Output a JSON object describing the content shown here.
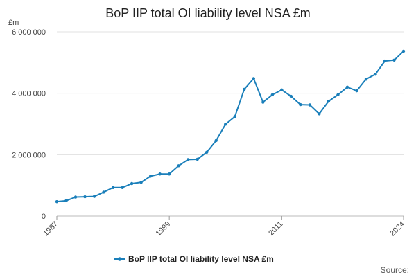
{
  "chart_data": {
    "type": "line",
    "title": "BoP IIP total OI liability level NSA £m",
    "ylabel": "£m",
    "xlabel": "",
    "ylim": [
      0,
      6000000
    ],
    "xlim": [
      1987,
      2024
    ],
    "y_ticks": [
      {
        "value": 0,
        "label": "0"
      },
      {
        "value": 2000000,
        "label": "2 000 000"
      },
      {
        "value": 4000000,
        "label": "4 000 000"
      },
      {
        "value": 6000000,
        "label": "6 000 000"
      }
    ],
    "x_ticks": [
      {
        "value": 1987,
        "label": "1987"
      },
      {
        "value": 1999,
        "label": "1999"
      },
      {
        "value": 2011,
        "label": "2011"
      },
      {
        "value": 2024,
        "label": "2024"
      }
    ],
    "grid": true,
    "legend_position": "bottom",
    "series": [
      {
        "name": "BoP IIP total OI liability level NSA £m",
        "color": "#1a7fba",
        "x": [
          1987,
          1988,
          1989,
          1990,
          1991,
          1992,
          1993,
          1994,
          1995,
          1996,
          1997,
          1998,
          1999,
          2000,
          2001,
          2002,
          2003,
          2004,
          2005,
          2006,
          2007,
          2008,
          2009,
          2010,
          2011,
          2012,
          2013,
          2014,
          2015,
          2016,
          2017,
          2018,
          2019,
          2020,
          2021,
          2022,
          2023,
          2024
        ],
        "values": [
          470000,
          500000,
          620000,
          630000,
          640000,
          780000,
          930000,
          930000,
          1060000,
          1100000,
          1300000,
          1370000,
          1370000,
          1640000,
          1840000,
          1850000,
          2080000,
          2460000,
          2990000,
          3240000,
          4130000,
          4480000,
          3710000,
          3950000,
          4110000,
          3900000,
          3630000,
          3620000,
          3330000,
          3740000,
          3950000,
          4200000,
          4080000,
          4460000,
          4620000,
          5050000,
          5080000,
          5370000
        ]
      }
    ]
  },
  "legend": {
    "label": "BoP IIP total OI liability level NSA £m"
  },
  "footer": {
    "source": "Source:"
  }
}
